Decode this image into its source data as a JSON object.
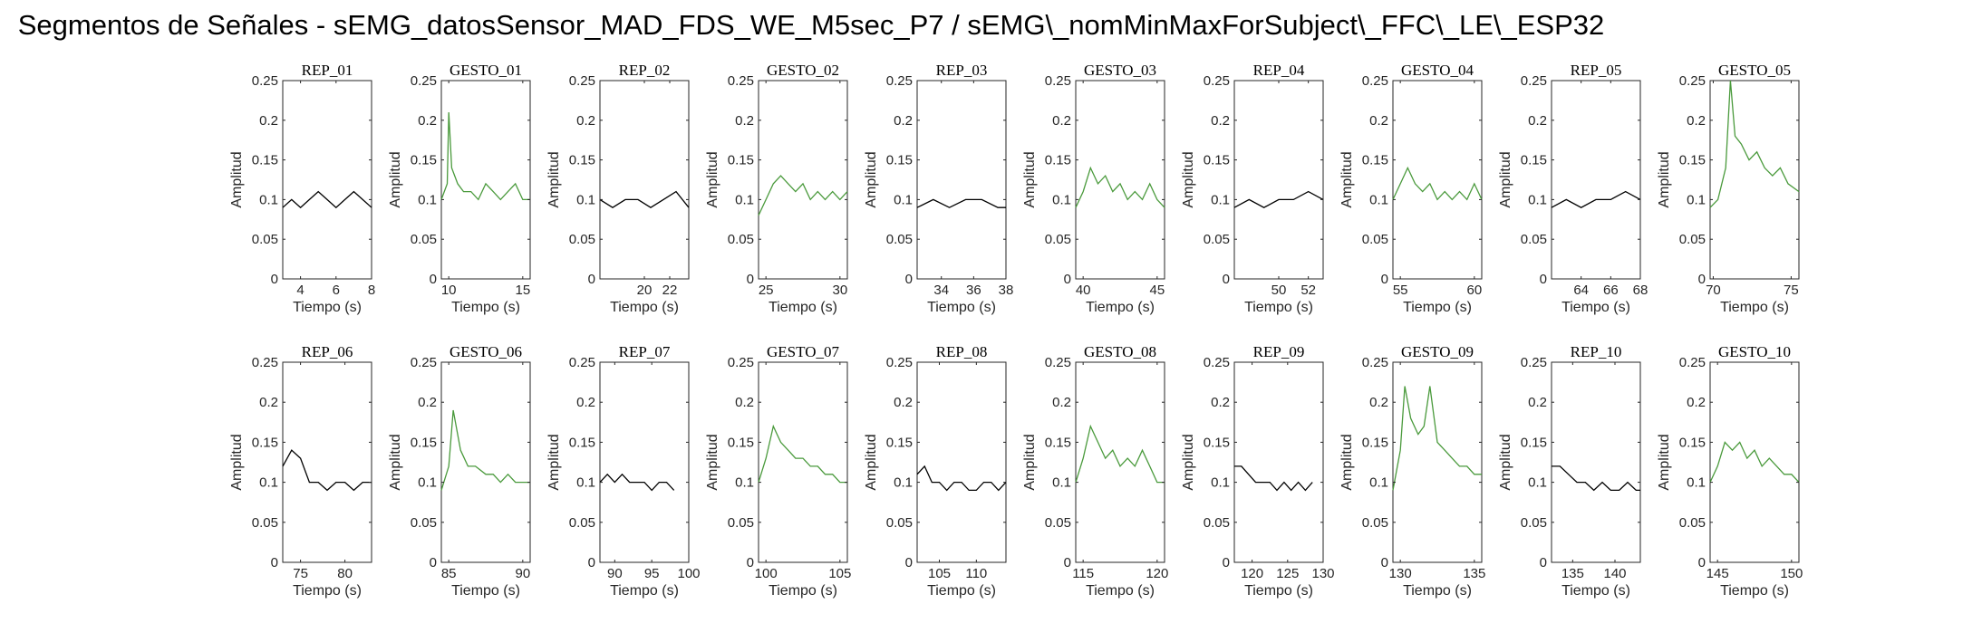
{
  "figure": {
    "title": "Segmentos de Señales - sEMG_datosSensor_MAD_FDS_WE_M5sec_P7 / sEMG\\_nomMinMaxForSubject\\_FFC\\_LE\\_ESP32"
  },
  "colors": {
    "rep": "#000000",
    "gesto": "#4a9a3c",
    "axis": "#262626"
  },
  "chart_data": [
    {
      "type": "line",
      "title": "REP_01",
      "xlabel": "Tiempo (s)",
      "ylabel": "Amplitud",
      "xlim": [
        3,
        8
      ],
      "ylim": [
        0,
        0.25
      ],
      "xticks": [
        4,
        6,
        8
      ],
      "yticks": [
        0,
        0.05,
        0.1,
        0.15,
        0.2,
        0.25
      ],
      "color": "rep",
      "series": [
        {
          "x": [
            3,
            3.5,
            4,
            4.5,
            5,
            5.5,
            6,
            6.5,
            7,
            7.5,
            8
          ],
          "y": [
            0.09,
            0.1,
            0.09,
            0.1,
            0.11,
            0.1,
            0.09,
            0.1,
            0.11,
            0.1,
            0.09
          ]
        }
      ]
    },
    {
      "type": "line",
      "title": "GESTO_01",
      "xlabel": "Tiempo (s)",
      "ylabel": "Amplitud",
      "xlim": [
        9.5,
        15.5
      ],
      "ylim": [
        0,
        0.25
      ],
      "xticks": [
        10,
        15
      ],
      "yticks": [
        0,
        0.05,
        0.1,
        0.15,
        0.2,
        0.25
      ],
      "color": "gesto",
      "series": [
        {
          "x": [
            9.5,
            9.9,
            10,
            10.2,
            10.6,
            11,
            11.5,
            12,
            12.5,
            13,
            13.5,
            14,
            14.5,
            15,
            15.5
          ],
          "y": [
            0.1,
            0.12,
            0.21,
            0.14,
            0.12,
            0.11,
            0.11,
            0.1,
            0.12,
            0.11,
            0.1,
            0.11,
            0.12,
            0.1,
            0.1
          ]
        }
      ]
    },
    {
      "type": "line",
      "title": "REP_02",
      "xlabel": "Tiempo (s)",
      "ylabel": "Amplitud",
      "xlim": [
        16.5,
        23.5
      ],
      "ylim": [
        0,
        0.25
      ],
      "xticks": [
        20,
        22
      ],
      "yticks": [
        0,
        0.05,
        0.1,
        0.15,
        0.2,
        0.25
      ],
      "color": "rep",
      "series": [
        {
          "x": [
            16.5,
            17.5,
            18.5,
            19.5,
            20.5,
            21.5,
            22.5,
            23.5
          ],
          "y": [
            0.1,
            0.09,
            0.1,
            0.1,
            0.09,
            0.1,
            0.11,
            0.09
          ]
        }
      ]
    },
    {
      "type": "line",
      "title": "GESTO_02",
      "xlabel": "Tiempo (s)",
      "ylabel": "Amplitud",
      "xlim": [
        24.5,
        30.5
      ],
      "ylim": [
        0,
        0.25
      ],
      "xticks": [
        25,
        30
      ],
      "yticks": [
        0,
        0.05,
        0.1,
        0.15,
        0.2,
        0.25
      ],
      "color": "gesto",
      "series": [
        {
          "x": [
            24.5,
            25,
            25.5,
            26,
            26.5,
            27,
            27.5,
            28,
            28.5,
            29,
            29.5,
            30,
            30.5
          ],
          "y": [
            0.08,
            0.1,
            0.12,
            0.13,
            0.12,
            0.11,
            0.12,
            0.1,
            0.11,
            0.1,
            0.11,
            0.1,
            0.11
          ]
        }
      ]
    },
    {
      "type": "line",
      "title": "REP_03",
      "xlabel": "Tiempo (s)",
      "ylabel": "Amplitud",
      "xlim": [
        32.5,
        38
      ],
      "ylim": [
        0,
        0.25
      ],
      "xticks": [
        34,
        36,
        38
      ],
      "yticks": [
        0,
        0.05,
        0.1,
        0.15,
        0.2,
        0.25
      ],
      "color": "rep",
      "series": [
        {
          "x": [
            32.5,
            33.5,
            34.5,
            35.5,
            36.5,
            37.5,
            38
          ],
          "y": [
            0.09,
            0.1,
            0.09,
            0.1,
            0.1,
            0.09,
            0.09
          ]
        }
      ]
    },
    {
      "type": "line",
      "title": "GESTO_03",
      "xlabel": "Tiempo (s)",
      "ylabel": "Amplitud",
      "xlim": [
        39.5,
        45.5
      ],
      "ylim": [
        0,
        0.25
      ],
      "xticks": [
        40,
        45
      ],
      "yticks": [
        0,
        0.05,
        0.1,
        0.15,
        0.2,
        0.25
      ],
      "color": "gesto",
      "series": [
        {
          "x": [
            39.5,
            40,
            40.5,
            41,
            41.5,
            42,
            42.5,
            43,
            43.5,
            44,
            44.5,
            45,
            45.5
          ],
          "y": [
            0.09,
            0.11,
            0.14,
            0.12,
            0.13,
            0.11,
            0.12,
            0.1,
            0.11,
            0.1,
            0.12,
            0.1,
            0.09
          ]
        }
      ]
    },
    {
      "type": "line",
      "title": "REP_04",
      "xlabel": "Tiempo (s)",
      "ylabel": "Amplitud",
      "xlim": [
        47,
        53
      ],
      "ylim": [
        0,
        0.25
      ],
      "xticks": [
        50,
        52
      ],
      "yticks": [
        0,
        0.05,
        0.1,
        0.15,
        0.2,
        0.25
      ],
      "color": "rep",
      "series": [
        {
          "x": [
            47,
            48,
            49,
            50,
            51,
            52,
            53
          ],
          "y": [
            0.09,
            0.1,
            0.09,
            0.1,
            0.1,
            0.11,
            0.1
          ]
        }
      ]
    },
    {
      "type": "line",
      "title": "GESTO_04",
      "xlabel": "Tiempo (s)",
      "ylabel": "Amplitud",
      "xlim": [
        54.5,
        60.5
      ],
      "ylim": [
        0,
        0.25
      ],
      "xticks": [
        55,
        60
      ],
      "yticks": [
        0,
        0.05,
        0.1,
        0.15,
        0.2,
        0.25
      ],
      "color": "gesto",
      "series": [
        {
          "x": [
            54.5,
            55,
            55.5,
            56,
            56.5,
            57,
            57.5,
            58,
            58.5,
            59,
            59.5,
            60,
            60.5
          ],
          "y": [
            0.1,
            0.12,
            0.14,
            0.12,
            0.11,
            0.12,
            0.1,
            0.11,
            0.1,
            0.11,
            0.1,
            0.12,
            0.1
          ]
        }
      ]
    },
    {
      "type": "line",
      "title": "REP_05",
      "xlabel": "Tiempo (s)",
      "ylabel": "Amplitud",
      "xlim": [
        62,
        68
      ],
      "ylim": [
        0,
        0.25
      ],
      "xticks": [
        64,
        66,
        68
      ],
      "yticks": [
        0,
        0.05,
        0.1,
        0.15,
        0.2,
        0.25
      ],
      "color": "rep",
      "series": [
        {
          "x": [
            62,
            63,
            64,
            65,
            66,
            67,
            68
          ],
          "y": [
            0.09,
            0.1,
            0.09,
            0.1,
            0.1,
            0.11,
            0.1
          ]
        }
      ]
    },
    {
      "type": "line",
      "title": "GESTO_05",
      "xlabel": "Tiempo (s)",
      "ylabel": "Amplitud",
      "xlim": [
        69.8,
        75.5
      ],
      "ylim": [
        0,
        0.25
      ],
      "xticks": [
        70,
        75
      ],
      "yticks": [
        0,
        0.05,
        0.1,
        0.15,
        0.2,
        0.25
      ],
      "color": "gesto",
      "series": [
        {
          "x": [
            69.8,
            70.3,
            70.8,
            71.1,
            71.4,
            71.8,
            72.3,
            72.8,
            73.3,
            73.8,
            74.3,
            74.8,
            75.5
          ],
          "y": [
            0.09,
            0.1,
            0.14,
            0.25,
            0.18,
            0.17,
            0.15,
            0.16,
            0.14,
            0.13,
            0.14,
            0.12,
            0.11
          ]
        }
      ]
    },
    {
      "type": "line",
      "title": "REP_06",
      "xlabel": "Tiempo (s)",
      "ylabel": "Amplitud",
      "xlim": [
        73,
        83
      ],
      "ylim": [
        0,
        0.25
      ],
      "xticks": [
        75,
        80
      ],
      "yticks": [
        0,
        0.05,
        0.1,
        0.15,
        0.2,
        0.25
      ],
      "color": "rep",
      "series": [
        {
          "x": [
            73,
            74,
            75,
            76,
            77,
            78,
            79,
            80,
            81,
            82,
            83
          ],
          "y": [
            0.12,
            0.14,
            0.13,
            0.1,
            0.1,
            0.09,
            0.1,
            0.1,
            0.09,
            0.1,
            0.1
          ]
        }
      ]
    },
    {
      "type": "line",
      "title": "GESTO_06",
      "xlabel": "Tiempo (s)",
      "ylabel": "Amplitud",
      "xlim": [
        84.5,
        90.5
      ],
      "ylim": [
        0,
        0.25
      ],
      "xticks": [
        85,
        90
      ],
      "yticks": [
        0,
        0.05,
        0.1,
        0.15,
        0.2,
        0.25
      ],
      "color": "gesto",
      "series": [
        {
          "x": [
            84.5,
            85,
            85.3,
            85.8,
            86.3,
            86.8,
            87.5,
            88,
            88.5,
            89,
            89.5,
            90,
            90.5
          ],
          "y": [
            0.09,
            0.12,
            0.19,
            0.14,
            0.12,
            0.12,
            0.11,
            0.11,
            0.1,
            0.11,
            0.1,
            0.1,
            0.1
          ]
        }
      ]
    },
    {
      "type": "line",
      "title": "REP_07",
      "xlabel": "Tiempo (s)",
      "ylabel": "Amplitud",
      "xlim": [
        88,
        100
      ],
      "ylim": [
        0,
        0.25
      ],
      "xticks": [
        90,
        95,
        100
      ],
      "yticks": [
        0,
        0.05,
        0.1,
        0.15,
        0.2,
        0.25
      ],
      "color": "rep",
      "series": [
        {
          "x": [
            88,
            89,
            90,
            91,
            92,
            93,
            94,
            95,
            96,
            97,
            98
          ],
          "y": [
            0.1,
            0.11,
            0.1,
            0.11,
            0.1,
            0.1,
            0.1,
            0.09,
            0.1,
            0.1,
            0.09
          ]
        }
      ]
    },
    {
      "type": "line",
      "title": "GESTO_07",
      "xlabel": "Tiempo (s)",
      "ylabel": "Amplitud",
      "xlim": [
        99.5,
        105.5
      ],
      "ylim": [
        0,
        0.25
      ],
      "xticks": [
        100,
        105
      ],
      "yticks": [
        0,
        0.05,
        0.1,
        0.15,
        0.2,
        0.25
      ],
      "color": "gesto",
      "series": [
        {
          "x": [
            99.5,
            100,
            100.5,
            101,
            101.5,
            102,
            102.5,
            103,
            103.5,
            104,
            104.5,
            105,
            105.5
          ],
          "y": [
            0.1,
            0.13,
            0.17,
            0.15,
            0.14,
            0.13,
            0.13,
            0.12,
            0.12,
            0.11,
            0.11,
            0.1,
            0.1
          ]
        }
      ]
    },
    {
      "type": "line",
      "title": "REP_08",
      "xlabel": "Tiempo (s)",
      "ylabel": "Amplitud",
      "xlim": [
        102,
        114
      ],
      "ylim": [
        0,
        0.25
      ],
      "xticks": [
        105,
        110
      ],
      "yticks": [
        0,
        0.05,
        0.1,
        0.15,
        0.2,
        0.25
      ],
      "color": "rep",
      "series": [
        {
          "x": [
            102,
            103,
            104,
            105,
            106,
            107,
            108,
            109,
            110,
            111,
            112,
            113,
            114
          ],
          "y": [
            0.11,
            0.12,
            0.1,
            0.1,
            0.09,
            0.1,
            0.1,
            0.09,
            0.09,
            0.1,
            0.1,
            0.09,
            0.1
          ]
        }
      ]
    },
    {
      "type": "line",
      "title": "GESTO_08",
      "xlabel": "Tiempo (s)",
      "ylabel": "Amplitud",
      "xlim": [
        114.5,
        120.5
      ],
      "ylim": [
        0,
        0.25
      ],
      "xticks": [
        115,
        120
      ],
      "yticks": [
        0,
        0.05,
        0.1,
        0.15,
        0.2,
        0.25
      ],
      "color": "gesto",
      "series": [
        {
          "x": [
            114.5,
            115,
            115.5,
            116,
            116.5,
            117,
            117.5,
            118,
            118.5,
            119,
            119.5,
            120,
            120.5
          ],
          "y": [
            0.1,
            0.13,
            0.17,
            0.15,
            0.13,
            0.14,
            0.12,
            0.13,
            0.12,
            0.14,
            0.12,
            0.1,
            0.1
          ]
        }
      ]
    },
    {
      "type": "line",
      "title": "REP_09",
      "xlabel": "Tiempo (s)",
      "ylabel": "Amplitud",
      "xlim": [
        117.5,
        130
      ],
      "ylim": [
        0,
        0.25
      ],
      "xticks": [
        120,
        125,
        130
      ],
      "yticks": [
        0,
        0.05,
        0.1,
        0.15,
        0.2,
        0.25
      ],
      "color": "rep",
      "series": [
        {
          "x": [
            117.5,
            118.5,
            119.5,
            120.5,
            121.5,
            122.5,
            123.5,
            124.5,
            125.5,
            126.5,
            127.5,
            128.5
          ],
          "y": [
            0.12,
            0.12,
            0.11,
            0.1,
            0.1,
            0.1,
            0.09,
            0.1,
            0.09,
            0.1,
            0.09,
            0.1
          ]
        }
      ]
    },
    {
      "type": "line",
      "title": "GESTO_09",
      "xlabel": "Tiempo (s)",
      "ylabel": "Amplitud",
      "xlim": [
        129.5,
        135.5
      ],
      "ylim": [
        0,
        0.25
      ],
      "xticks": [
        130,
        135
      ],
      "yticks": [
        0,
        0.05,
        0.1,
        0.15,
        0.2,
        0.25
      ],
      "color": "gesto",
      "series": [
        {
          "x": [
            129.5,
            130,
            130.3,
            130.7,
            131.2,
            131.6,
            132,
            132.5,
            133,
            133.5,
            134,
            134.5,
            135,
            135.5
          ],
          "y": [
            0.09,
            0.14,
            0.22,
            0.18,
            0.16,
            0.17,
            0.22,
            0.15,
            0.14,
            0.13,
            0.12,
            0.12,
            0.11,
            0.11
          ]
        }
      ]
    },
    {
      "type": "line",
      "title": "REP_10",
      "xlabel": "Tiempo (s)",
      "ylabel": "Amplitud",
      "xlim": [
        132.5,
        143
      ],
      "ylim": [
        0,
        0.25
      ],
      "xticks": [
        135,
        140
      ],
      "yticks": [
        0,
        0.05,
        0.1,
        0.15,
        0.2,
        0.25
      ],
      "color": "rep",
      "series": [
        {
          "x": [
            132.5,
            133.5,
            134.5,
            135.5,
            136.5,
            137.5,
            138.5,
            139.5,
            140.5,
            141.5,
            142.5,
            143
          ],
          "y": [
            0.12,
            0.12,
            0.11,
            0.1,
            0.1,
            0.09,
            0.1,
            0.09,
            0.09,
            0.1,
            0.09,
            0.09
          ]
        }
      ]
    },
    {
      "type": "line",
      "title": "GESTO_10",
      "xlabel": "Tiempo (s)",
      "ylabel": "Amplitud",
      "xlim": [
        144.5,
        150.5
      ],
      "ylim": [
        0,
        0.25
      ],
      "xticks": [
        145,
        150
      ],
      "yticks": [
        0,
        0.05,
        0.1,
        0.15,
        0.2,
        0.25
      ],
      "color": "gesto",
      "series": [
        {
          "x": [
            144.5,
            145,
            145.5,
            146,
            146.5,
            147,
            147.5,
            148,
            148.5,
            149,
            149.5,
            150,
            150.5
          ],
          "y": [
            0.1,
            0.12,
            0.15,
            0.14,
            0.15,
            0.13,
            0.14,
            0.12,
            0.13,
            0.12,
            0.11,
            0.11,
            0.1
          ]
        }
      ]
    }
  ]
}
